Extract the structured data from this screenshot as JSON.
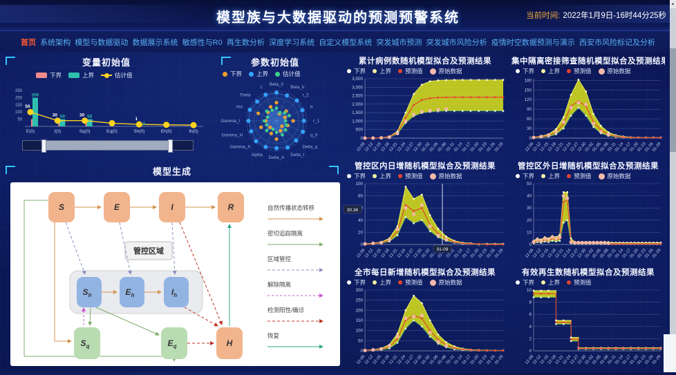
{
  "header": {
    "title": "模型族与大数据驱动的预测预警系统",
    "time_label": "当前时间:",
    "time_value": "2022年1月9日-16时44分25秒"
  },
  "nav": {
    "active_index": 0,
    "items": [
      "首页",
      "系统架构",
      "模型与数据驱动",
      "数据展示系统",
      "敏感性与R0",
      "再生数分析",
      "深度学习系统",
      "自定义模型系统",
      "突发城市预测",
      "突发城市风险分析",
      "疫情时空数据预测与演示",
      "西安市风险标记及分析"
    ]
  },
  "colors": {
    "accent_cyan": "#36c5ff",
    "nav_link": "#57aef2",
    "nav_active": "#ff5a2e",
    "time_label": "#f0a63c",
    "band": "#ccd41e",
    "upper_line": "#eded5a",
    "lower_line": "#5fae68",
    "pred_line": "#e2452f",
    "orig_dot": "#f4b8ab",
    "legend_lower": "#ffffff",
    "legend_upper": "#f7f3a3",
    "var_lower": "#f08a8a",
    "var_upper": "#2fbfae",
    "var_est": "#ffd21e",
    "radar_lower": "#f0a030",
    "radar_upper": "#35a2ff",
    "radar_est": "#3ecf8e"
  },
  "panels": {
    "variable": {
      "title": "变量初始值",
      "legend": [
        {
          "label": "下界",
          "color": "#f08a8a",
          "type": "rect"
        },
        {
          "label": "上界",
          "color": "#2fbfae",
          "type": "rect"
        },
        {
          "label": "估计值",
          "color": "#ffd21e",
          "type": "line"
        }
      ],
      "chart_data": {
        "type": "bar+line",
        "categories": [
          "E(0)",
          "I(0)",
          "Sq(0)",
          "Eq(0)",
          "Sh(0)",
          "Eh(0)",
          "Ih(0)"
        ],
        "ymax": 260,
        "yticks": [
          50,
          100,
          150,
          200,
          250
        ],
        "series": [
          {
            "name": "上界",
            "values": [
              200,
              50,
              50,
              0,
              1,
              0,
              0
            ]
          },
          {
            "name": "下界",
            "values": [
              50,
              30,
              30,
              0,
              1,
              0,
              0
            ]
          },
          {
            "name": "估计值",
            "values": [
              100,
              40,
              40,
              22,
              14,
              11,
              9
            ]
          }
        ],
        "point_labels_upper": [
          "200",
          "50",
          "50",
          "",
          "1",
          "",
          ""
        ],
        "point_labels_lower": [
          "50",
          "30",
          "30",
          "",
          "1",
          "",
          ""
        ]
      }
    },
    "parameter": {
      "title": "参数初始值",
      "legend": [
        {
          "label": "下界",
          "color": "#f0a030",
          "type": "dot"
        },
        {
          "label": "上界",
          "color": "#35a2ff",
          "type": "dot"
        },
        {
          "label": "估计值",
          "color": "#3ecf8e",
          "type": "dot"
        }
      ],
      "chart_data": {
        "type": "radar",
        "axes": [
          "Beta_0",
          "Beta_b",
          "r_2",
          "b",
          "r_1",
          "q_0",
          "Delta_q",
          "Delta_I",
          "Delta_A",
          "Alpha",
          "Gamma_A",
          "Gamma_H",
          "Gamma_I",
          "rho",
          "Theta",
          "c"
        ],
        "series": [
          {
            "name": "上界",
            "values": [
              0.93,
              0.9,
              0.95,
              0.92,
              0.9,
              0.94,
              0.91,
              0.95,
              0.9,
              0.93,
              0.95,
              0.9,
              0.92,
              0.95,
              0.9,
              0.93
            ]
          },
          {
            "name": "估计值",
            "values": [
              0.42,
              0.3,
              0.38,
              0.45,
              0.3,
              0.35,
              0.42,
              0.5,
              0.38,
              0.3,
              0.45,
              0.35,
              0.4,
              0.32,
              0.45,
              0.38
            ]
          },
          {
            "name": "下界",
            "values": [
              0.6,
              0.25,
              0.45,
              0.3,
              0.55,
              0.4,
              0.25,
              0.35,
              0.6,
              0.45,
              0.3,
              0.55,
              0.35,
              0.65,
              0.4,
              0.5
            ]
          }
        ]
      }
    },
    "model": {
      "title": "模型生成",
      "region_label": "管控区域",
      "nodes": [
        {
          "id": "S",
          "label": "S",
          "sub": "",
          "color": "#f2b48c"
        },
        {
          "id": "E",
          "label": "E",
          "sub": "",
          "color": "#f2b48c"
        },
        {
          "id": "I",
          "label": "I",
          "sub": "",
          "color": "#f2b48c"
        },
        {
          "id": "R",
          "label": "R",
          "sub": "",
          "color": "#f2b48c"
        },
        {
          "id": "Sh",
          "label": "S",
          "sub": "h",
          "color": "#92b4e3"
        },
        {
          "id": "Eh",
          "label": "E",
          "sub": "h",
          "color": "#92b4e3"
        },
        {
          "id": "Ih",
          "label": "I",
          "sub": "h",
          "color": "#92b4e3"
        },
        {
          "id": "Sq",
          "label": "S",
          "sub": "q",
          "color": "#b9dcb2"
        },
        {
          "id": "Eq",
          "label": "E",
          "sub": "q",
          "color": "#b9dcb2"
        },
        {
          "id": "H",
          "label": "H",
          "sub": "",
          "color": "#f2b48c"
        }
      ],
      "legend": [
        {
          "label": "自然传播状态转移",
          "type": "natural"
        },
        {
          "label": "密切追踪隔离",
          "type": "trace"
        },
        {
          "label": "区域管控",
          "type": "control"
        },
        {
          "label": "解除隔离",
          "type": "release"
        },
        {
          "label": "检测阳性/确诊",
          "type": "positive"
        },
        {
          "label": "恢复",
          "type": "recover"
        }
      ]
    }
  },
  "chart_x_labels": [
    "12-09",
    "12-12",
    "12-15",
    "12-18",
    "12-21",
    "12-24",
    "12-27",
    "12-30",
    "01-02",
    "01-05",
    "01-08",
    "01-11",
    "01-14",
    "01-17",
    "01-20",
    "01-23",
    "01-26",
    "01-29"
  ],
  "charts": [
    {
      "title": "累计病例数随机模型拟合及预测结果",
      "legend": [
        {
          "label": "下界",
          "color": "#ffffff"
        },
        {
          "label": "上界",
          "color": "#f7f3a3"
        },
        {
          "label": "预测值",
          "color": "#e2452f"
        },
        {
          "label": "原始数据",
          "color": "#f4b8ab",
          "big": true
        }
      ],
      "chart_data": {
        "type": "area+line",
        "ymax": 3500,
        "yticks": [
          0,
          500,
          1000,
          1500,
          2000,
          2500,
          3000,
          3500
        ],
        "ytick_labels": [
          "0",
          "500",
          "1,000",
          "1,500",
          "2,000",
          "2,500",
          "3,000",
          "3,500"
        ],
        "step": false,
        "series": {
          "upper": [
            5,
            10,
            30,
            90,
            400,
            1500,
            2600,
            3150,
            3350,
            3400,
            3420,
            3430,
            3430,
            3430,
            3430,
            3430,
            3430,
            3430
          ],
          "lower": [
            2,
            5,
            15,
            50,
            250,
            900,
            1300,
            1480,
            1550,
            1580,
            1600,
            1600,
            1600,
            1600,
            1600,
            1600,
            1600,
            1600
          ],
          "pred": [
            3,
            8,
            22,
            70,
            320,
            1200,
            1950,
            2250,
            2350,
            2390,
            2400,
            2410,
            2410,
            2410,
            2410,
            2410,
            2410,
            2410
          ],
          "orig": [
            2,
            6,
            18,
            60,
            280,
            1000,
            1400,
            1550,
            1620,
            1680,
            1720
          ]
        }
      }
    },
    {
      "title": "集中隔离密接筛查随机模型拟合及预测结果",
      "legend": [
        {
          "label": "下界",
          "color": "#ffffff"
        },
        {
          "label": "上界",
          "color": "#f7f3a3"
        },
        {
          "label": "预测值",
          "color": "#e2452f"
        },
        {
          "label": "原始数据",
          "color": "#f4b8ab",
          "big": true
        }
      ],
      "chart_data": {
        "type": "area+line",
        "ymax": 185,
        "yticks": [
          0,
          30,
          60,
          90,
          120,
          150,
          180
        ],
        "ytick_labels": [
          "0",
          "30",
          "60",
          "90",
          "120",
          "150",
          "180"
        ],
        "step": false,
        "series": {
          "upper": [
            3,
            6,
            12,
            28,
            65,
            135,
            182,
            145,
            75,
            38,
            18,
            9,
            5,
            3,
            2,
            2,
            2,
            2
          ],
          "lower": [
            1,
            2,
            5,
            12,
            30,
            70,
            95,
            70,
            35,
            15,
            8,
            4,
            2,
            1,
            1,
            1,
            1,
            1
          ],
          "pred": [
            2,
            4,
            8,
            18,
            45,
            100,
            115,
            100,
            50,
            25,
            12,
            6,
            3,
            2,
            1,
            1,
            1,
            1
          ],
          "orig": [
            2,
            5,
            10,
            20,
            50,
            95,
            110,
            105,
            45,
            20,
            10
          ]
        }
      }
    },
    {
      "title": "管控区内日增随机模型拟合及预测结果",
      "legend": [
        {
          "label": "下界",
          "color": "#ffffff"
        },
        {
          "label": "上界",
          "color": "#f7f3a3"
        },
        {
          "label": "预测值",
          "color": "#e2452f"
        },
        {
          "label": "原始数据",
          "color": "#f4b8ab",
          "big": true
        }
      ],
      "chart_data": {
        "type": "area+line",
        "ymax": 100,
        "yticks": [
          0,
          20,
          40,
          60,
          80,
          100
        ],
        "ytick_labels": [
          "0",
          "20",
          "40",
          "60",
          "80",
          "100"
        ],
        "step": false,
        "marker": {
          "x_label": "01-09",
          "x_frac": 0.56,
          "y_label": "30.36",
          "y_frac": 0.58
        },
        "series": {
          "upper": [
            1,
            2,
            4,
            10,
            30,
            95,
            75,
            82,
            48,
            26,
            13,
            6,
            3,
            2,
            1,
            1,
            1,
            1
          ],
          "lower": [
            0,
            1,
            2,
            5,
            15,
            45,
            35,
            40,
            22,
            12,
            6,
            3,
            1,
            1,
            0,
            0,
            0,
            0
          ],
          "pred": [
            0,
            1,
            3,
            7,
            22,
            65,
            55,
            60,
            32,
            18,
            9,
            4,
            2,
            1,
            1,
            0,
            0,
            0
          ],
          "orig": [
            1,
            2,
            3,
            8,
            25,
            60,
            50,
            65,
            30,
            15,
            8
          ]
        }
      }
    },
    {
      "title": "管控区外日增随机模型拟合及预测结果",
      "legend": [
        {
          "label": "下界",
          "color": "#ffffff"
        },
        {
          "label": "上界",
          "color": "#f7f3a3"
        },
        {
          "label": "预测值",
          "color": "#e2452f"
        },
        {
          "label": "原始数据",
          "color": "#f4b8ab",
          "big": true
        }
      ],
      "chart_data": {
        "type": "area+line",
        "ymax": 50,
        "yticks": [
          0,
          10,
          20,
          30,
          40,
          50
        ],
        "ytick_labels": [
          "0",
          "10",
          "20",
          "30",
          "40",
          "50"
        ],
        "step": false,
        "series": {
          "upper": [
            3,
            5,
            4,
            6,
            5,
            7,
            6,
            8,
            43,
            43,
            5,
            2,
            2,
            2,
            2,
            2,
            2,
            2,
            2,
            2,
            2,
            1.5,
            1.5,
            1.5,
            1.5,
            1.5,
            1.5,
            1.5,
            1.5,
            1.5,
            1.5,
            1.5,
            1.5,
            1.5,
            1.5
          ],
          "lower": [
            1,
            2,
            1.5,
            2.5,
            2,
            3,
            2.5,
            3,
            18,
            20,
            1,
            0.5,
            0.5,
            0.5,
            0.5,
            0.5,
            0.5,
            0.5,
            0.5,
            0.5,
            0.5,
            0.3,
            0.3,
            0.3,
            0.3,
            0.3,
            0.3,
            0.3,
            0.3,
            0.3,
            0.3,
            0.3,
            0.3,
            0.3,
            0.3
          ],
          "pred": [
            2,
            3,
            2.5,
            4,
            3,
            5,
            4,
            5,
            35,
            37,
            2,
            1,
            1,
            1,
            1,
            1,
            1,
            1,
            1,
            1,
            1,
            0.5,
            0.5,
            0.5,
            0.5,
            0.5,
            0.5,
            0.5,
            0.5,
            0.5,
            0.5,
            0.5,
            0.5,
            0.5,
            0.5
          ],
          "orig": [
            2,
            4,
            3,
            5,
            4,
            6,
            5,
            6,
            40,
            38,
            2,
            1.5,
            1.5,
            1.5,
            1.5,
            1.5,
            1.5,
            1.5,
            1.5,
            1.5,
            1
          ]
        }
      }
    },
    {
      "title": "全市每日新增随机模型拟合及预测结果",
      "legend": [
        {
          "label": "下界",
          "color": "#ffffff"
        },
        {
          "label": "上界",
          "color": "#f7f3a3"
        },
        {
          "label": "预测值",
          "color": "#e2452f"
        },
        {
          "label": "原始数据",
          "color": "#f4b8ab",
          "big": true
        }
      ],
      "chart_data": {
        "type": "area+line",
        "ymax": 300,
        "yticks": [
          0,
          50,
          100,
          150,
          200,
          250,
          300
        ],
        "ytick_labels": [
          "0",
          "50",
          "100",
          "150",
          "200",
          "250",
          "300"
        ],
        "step": false,
        "series": {
          "upper": [
            3,
            6,
            12,
            30,
            85,
            200,
            272,
            235,
            150,
            80,
            42,
            22,
            11,
            6,
            4,
            3,
            2,
            2
          ],
          "lower": [
            1,
            2,
            5,
            12,
            40,
            110,
            150,
            120,
            70,
            35,
            18,
            8,
            4,
            2,
            1,
            1,
            1,
            1
          ],
          "pred": [
            2,
            4,
            8,
            20,
            60,
            150,
            175,
            160,
            100,
            55,
            28,
            14,
            7,
            4,
            2,
            2,
            1,
            1
          ],
          "orig": [
            2,
            5,
            10,
            25,
            70,
            160,
            170,
            175,
            90,
            45,
            25
          ]
        }
      }
    },
    {
      "title": "有效再生数随机模型拟合及预测结果",
      "legend": [
        {
          "label": "下界",
          "color": "#ffffff"
        },
        {
          "label": "上界",
          "color": "#f7f3a3"
        },
        {
          "label": "预测值",
          "color": "#e2452f"
        }
      ],
      "chart_data": {
        "type": "area+line",
        "ymax": 10,
        "yticks": [
          0,
          2,
          4,
          6,
          8,
          10
        ],
        "ytick_labels": [
          "0",
          "2",
          "4",
          "6",
          "8",
          "10"
        ],
        "step": true,
        "series": {
          "upper": [
            9.9,
            9.9,
            9.9,
            5.0,
            5.0,
            2.2,
            0.5,
            0.5,
            0.5,
            0.5,
            0.5,
            0.5,
            0.5,
            0.5,
            0.5,
            0.5,
            0.5,
            0.5
          ],
          "lower": [
            8.8,
            8.8,
            8.8,
            4.4,
            4.4,
            1.6,
            0.3,
            0.3,
            0.3,
            0.3,
            0.3,
            0.3,
            0.3,
            0.3,
            0.3,
            0.3,
            0.3,
            0.3
          ],
          "pred": [
            9.4,
            9.4,
            9.4,
            4.7,
            4.7,
            1.9,
            0.4,
            0.4,
            0.4,
            0.4,
            0.4,
            0.4,
            0.4,
            0.4,
            0.4,
            0.4,
            0.4,
            0.4
          ],
          "orig": []
        }
      }
    }
  ],
  "scrollbar": {
    "up_arrow": "▲",
    "down_arrow": "▼"
  }
}
